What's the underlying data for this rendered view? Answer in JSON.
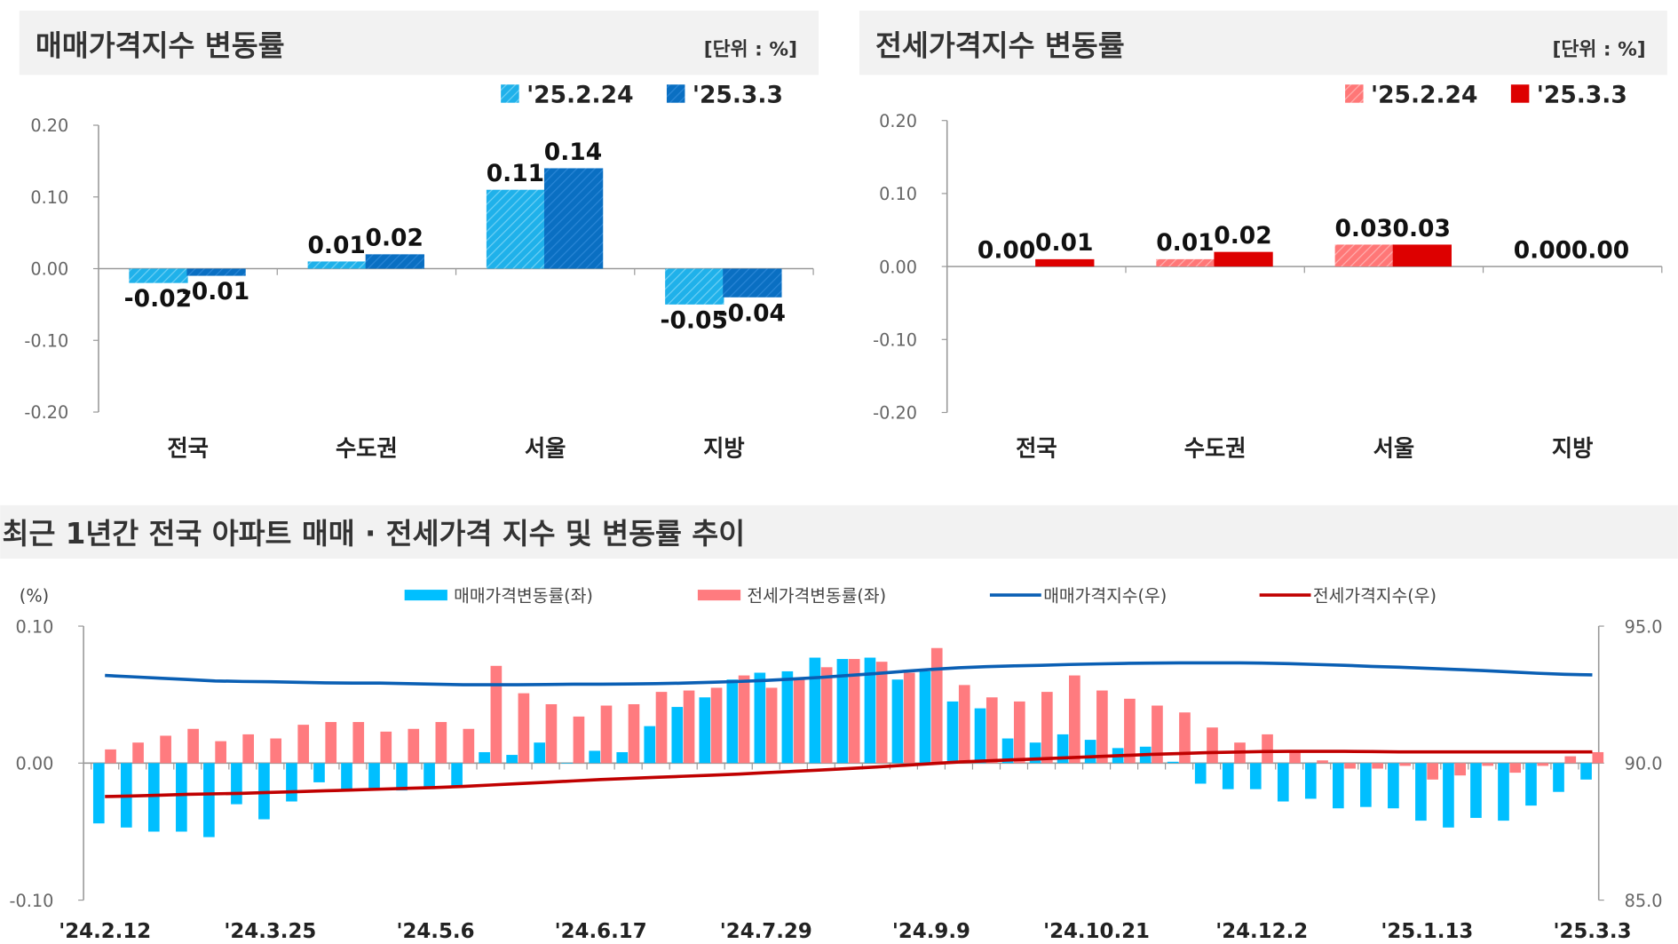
{
  "colors": {
    "sale_prev": "#1fb1ea",
    "sale_cur": "#0a6fc2",
    "jeonse_prev": "#ff7777",
    "jeonse_cur": "#dd0000",
    "sale_rate": "#00bfff",
    "jeonse_rate": "#ff7b7f",
    "sale_index": "#0a5fb4",
    "jeonse_index": "#c00000",
    "header_bg": "#f2f2f2"
  },
  "chart_data": [
    {
      "type": "bar",
      "title": "매매가격지수 변동률",
      "unit": "[단위 : %]",
      "categories": [
        "전국",
        "수도권",
        "서울",
        "지방"
      ],
      "series": [
        {
          "name": "'25.2.24",
          "values": [
            -0.02,
            0.01,
            0.11,
            -0.05
          ],
          "labels": [
            "-0.02",
            "0.01",
            "0.11",
            "-0.05"
          ]
        },
        {
          "name": "'25.3.3",
          "values": [
            -0.01,
            0.02,
            0.14,
            -0.04
          ],
          "labels": [
            "-0.01",
            "0.02",
            "0.14",
            "-0.04"
          ]
        }
      ],
      "ylim": [
        -0.2,
        0.2
      ],
      "yticks": [
        "0.20",
        "0.10",
        "0.00",
        "-0.10",
        "-0.20"
      ],
      "legend": "top-right"
    },
    {
      "type": "bar",
      "title": "전세가격지수 변동률",
      "unit": "[단위 : %]",
      "categories": [
        "전국",
        "수도권",
        "서울",
        "지방"
      ],
      "series": [
        {
          "name": "'25.2.24",
          "values": [
            0.0,
            0.01,
            0.03,
            0.0
          ],
          "labels": [
            "0.00",
            "0.01",
            "0.03",
            "0.00"
          ]
        },
        {
          "name": "'25.3.3",
          "values": [
            0.01,
            0.02,
            0.03,
            0.0
          ],
          "labels": [
            "0.01",
            "0.02",
            "0.03",
            "0.00"
          ]
        }
      ],
      "ylim": [
        -0.2,
        0.2
      ],
      "yticks": [
        "0.20",
        "0.10",
        "0.00",
        "-0.10",
        "-0.20"
      ],
      "legend": "top-right"
    },
    {
      "type": "bar+line",
      "title": "최근 1년간 전국 아파트 매매 · 전세가격 지수 및 변동률 추이",
      "ylabel": "(%)",
      "ylim": [
        -0.1,
        0.1
      ],
      "yticks": [
        "0.10",
        "0.00",
        "-0.10"
      ],
      "y2lim": [
        85,
        95
      ],
      "y2ticks": [
        "95.0",
        "90.0",
        "85.0"
      ],
      "x_tick_labels": [
        "'24.2.12",
        "'24.3.25",
        "'24.5.6",
        "'24.6.17",
        "'24.7.29",
        "'24.9.9",
        "'24.10.21",
        "'24.12.2",
        "'25.1.13",
        "'25.3.3"
      ],
      "legend": "top",
      "series": [
        {
          "name": "매매가격변동률(좌)",
          "kind": "bar",
          "values": [
            -0.044,
            -0.047,
            -0.05,
            -0.05,
            -0.054,
            -0.03,
            -0.041,
            -0.028,
            -0.014,
            -0.019,
            -0.019,
            -0.02,
            -0.019,
            -0.018,
            0.008,
            0.006,
            0.015,
            0.0,
            0.009,
            0.008,
            0.027,
            0.041,
            0.048,
            0.061,
            0.066,
            0.067,
            0.077,
            0.076,
            0.077,
            0.061,
            0.067,
            0.045,
            0.04,
            0.018,
            0.015,
            0.021,
            0.017,
            0.011,
            0.012,
            0.001,
            -0.015,
            -0.019,
            -0.019,
            -0.028,
            -0.026,
            -0.033,
            -0.032,
            -0.033,
            -0.042,
            -0.047,
            -0.04,
            -0.042,
            -0.031,
            -0.021,
            -0.012
          ]
        },
        {
          "name": "전세가격변동률(좌)",
          "kind": "bar",
          "values": [
            0.01,
            0.015,
            0.02,
            0.025,
            0.016,
            0.021,
            0.018,
            0.028,
            0.03,
            0.03,
            0.023,
            0.025,
            0.03,
            0.025,
            0.071,
            0.051,
            0.043,
            0.034,
            0.042,
            0.043,
            0.052,
            0.053,
            0.055,
            0.064,
            0.055,
            0.061,
            0.07,
            0.076,
            0.074,
            0.066,
            0.084,
            0.057,
            0.048,
            0.045,
            0.052,
            0.064,
            0.053,
            0.047,
            0.042,
            0.037,
            0.026,
            0.015,
            0.021,
            0.008,
            0.002,
            -0.004,
            -0.004,
            -0.002,
            -0.012,
            -0.009,
            -0.002,
            -0.007,
            -0.002,
            0.005,
            0.008
          ]
        },
        {
          "name": "매매가격지수(우)",
          "kind": "line",
          "values": [
            93.2,
            93.15,
            93.1,
            93.05,
            93.0,
            92.98,
            92.97,
            92.95,
            92.93,
            92.92,
            92.92,
            92.9,
            92.88,
            92.86,
            92.86,
            92.86,
            92.87,
            92.88,
            92.88,
            92.89,
            92.9,
            92.92,
            92.95,
            92.98,
            93.02,
            93.07,
            93.13,
            93.2,
            93.27,
            93.35,
            93.42,
            93.48,
            93.52,
            93.55,
            93.57,
            93.6,
            93.62,
            93.64,
            93.65,
            93.66,
            93.66,
            93.66,
            93.65,
            93.63,
            93.6,
            93.57,
            93.53,
            93.5,
            93.46,
            93.42,
            93.38,
            93.33,
            93.28,
            93.24,
            93.22
          ]
        },
        {
          "name": "전세가격지수(우)",
          "kind": "line",
          "values": [
            88.78,
            88.8,
            88.83,
            88.86,
            88.88,
            88.9,
            88.93,
            88.96,
            88.99,
            89.02,
            89.05,
            89.08,
            89.11,
            89.15,
            89.2,
            89.25,
            89.3,
            89.35,
            89.4,
            89.44,
            89.48,
            89.52,
            89.56,
            89.6,
            89.65,
            89.7,
            89.75,
            89.8,
            89.86,
            89.92,
            89.98,
            90.04,
            90.08,
            90.12,
            90.16,
            90.2,
            90.24,
            90.28,
            90.32,
            90.35,
            90.38,
            90.4,
            90.42,
            90.43,
            90.43,
            90.43,
            90.42,
            90.41,
            90.41,
            90.41,
            90.41,
            90.41,
            90.41,
            90.41,
            90.41
          ]
        }
      ]
    }
  ]
}
